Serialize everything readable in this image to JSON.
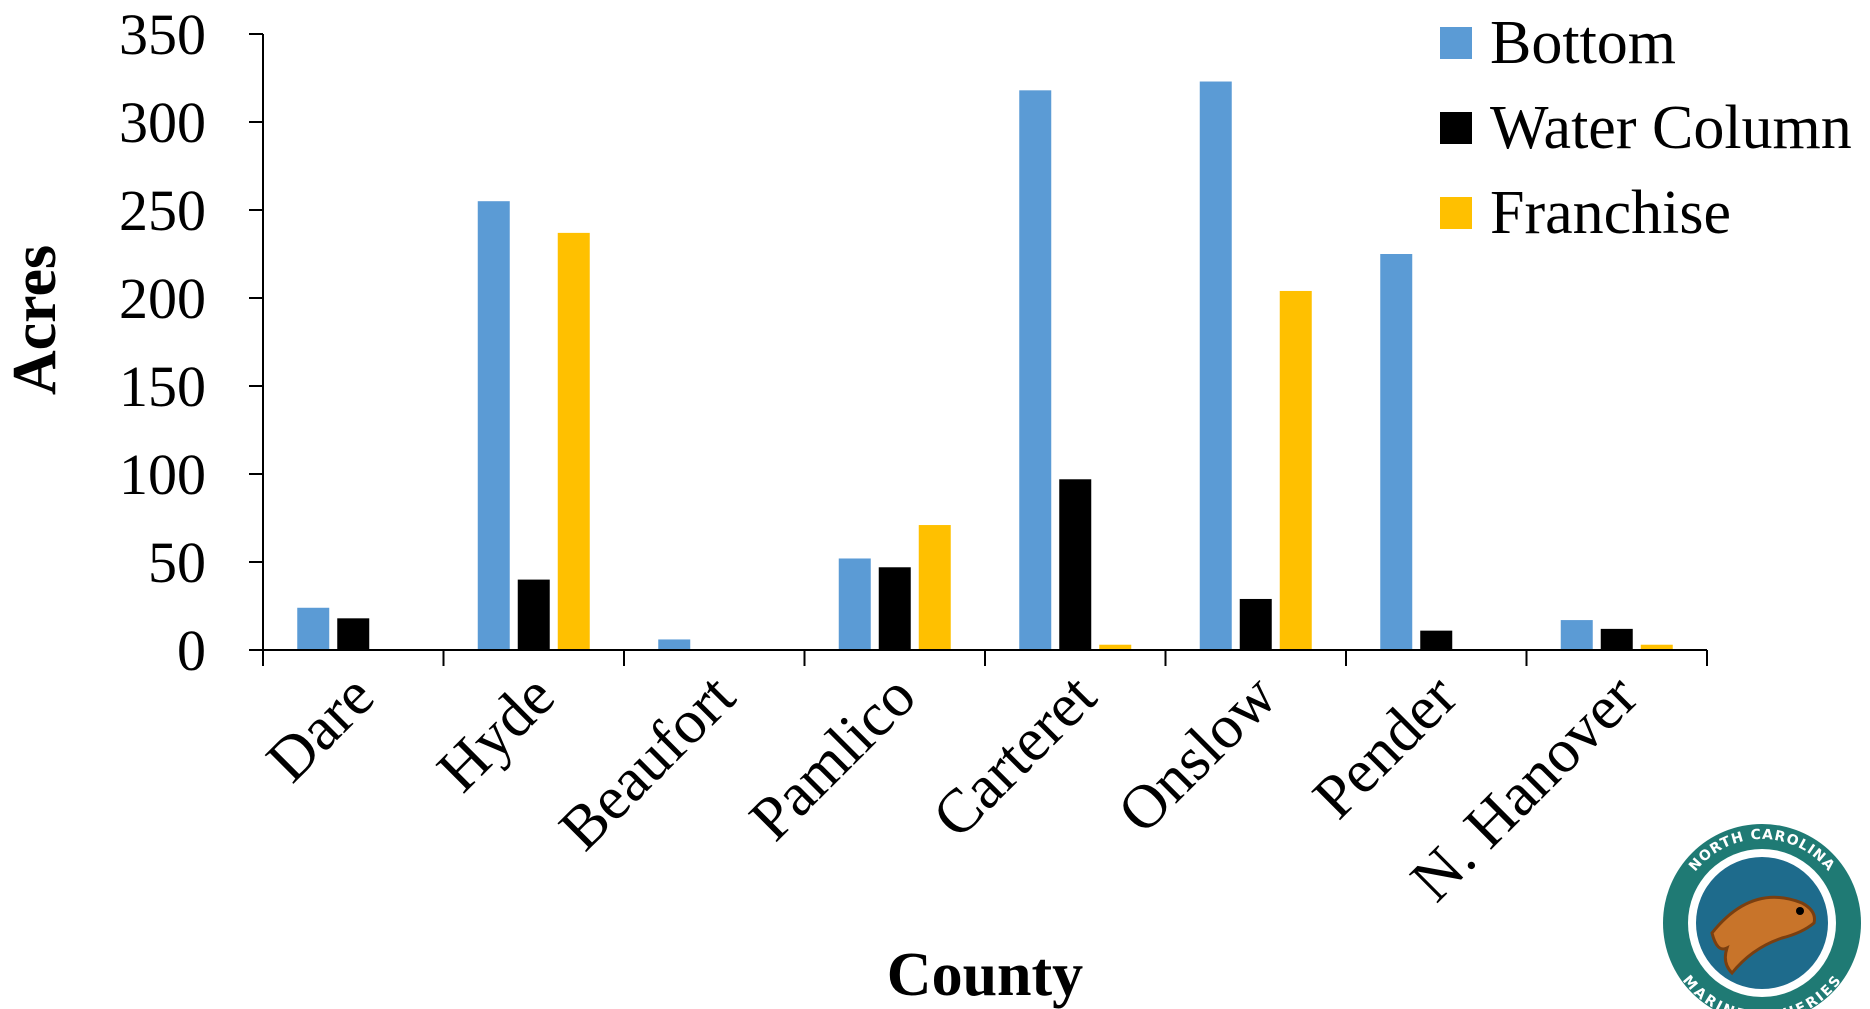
{
  "chart_data": {
    "type": "bar",
    "title": "",
    "xlabel": "County",
    "ylabel": "Acres",
    "ylim": [
      0,
      350
    ],
    "yticks": [
      0,
      50,
      100,
      150,
      200,
      250,
      300,
      350
    ],
    "grid": false,
    "legend_position": "top-right",
    "categories": [
      "Dare",
      "Hyde",
      "Beaufort",
      "Pamlico",
      "Carteret",
      "Onslow",
      "Pender",
      "N. Hanover"
    ],
    "series": [
      {
        "name": "Bottom",
        "color": "#5b9bd5",
        "values": [
          24,
          255,
          6,
          52,
          318,
          323,
          225,
          17
        ]
      },
      {
        "name": "Water Column",
        "color": "#000000",
        "values": [
          18,
          40,
          0,
          47,
          97,
          29,
          11,
          12
        ]
      },
      {
        "name": "Franchise",
        "color": "#ffc000",
        "values": [
          0,
          237,
          0,
          71,
          3,
          204,
          0,
          3
        ]
      }
    ]
  },
  "logo": {
    "text_top": "NORTH CAROLINA",
    "text_bottom": "MARINE FISHERIES",
    "ring_color": "#1f7a74",
    "icon": "red-drum-fish-icon"
  }
}
